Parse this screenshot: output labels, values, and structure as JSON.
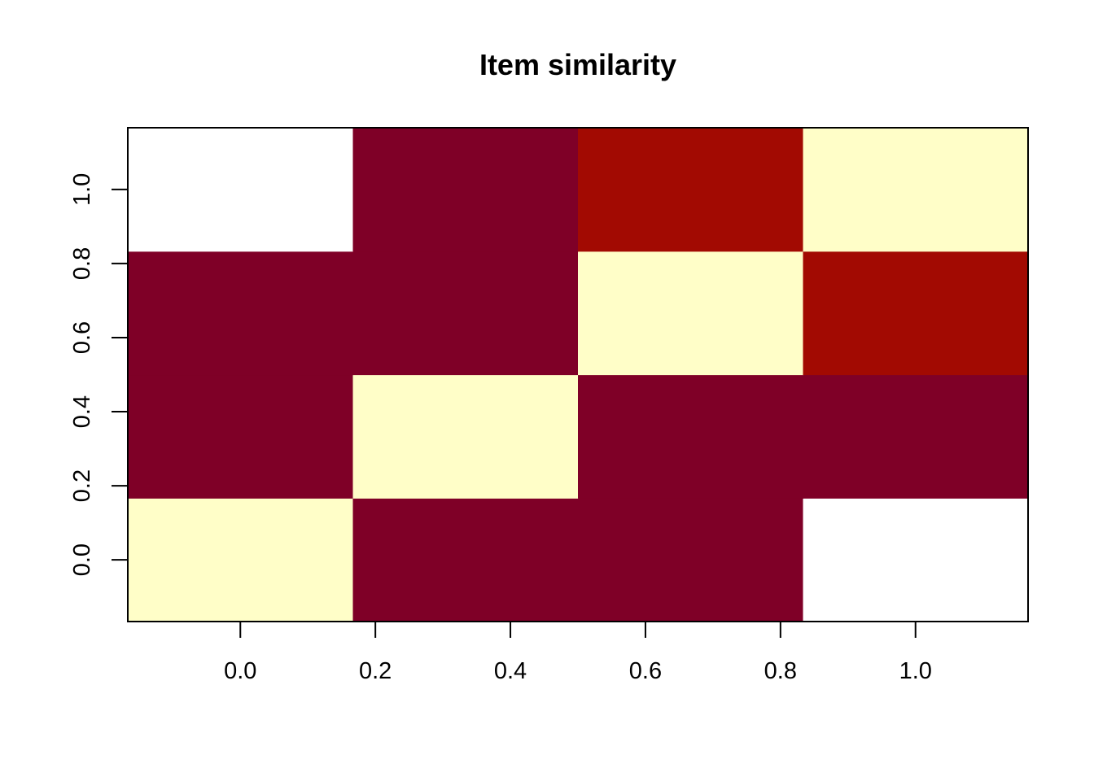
{
  "chart_data": {
    "type": "heatmap",
    "title": "Item similarity",
    "xlabel": "",
    "ylabel": "",
    "rows": 4,
    "cols": 4,
    "x_ticks": [
      "0.0",
      "0.2",
      "0.4",
      "0.6",
      "0.8",
      "1.0"
    ],
    "y_ticks": [
      "0.0",
      "0.2",
      "0.4",
      "0.6",
      "0.8",
      "1.0"
    ],
    "x_tick_values": [
      0.0,
      0.2,
      0.4,
      0.6,
      0.8,
      1.0
    ],
    "y_tick_values": [
      0.0,
      0.2,
      0.4,
      0.6,
      0.8,
      1.0
    ],
    "xlim": [
      -0.1667,
      1.1667
    ],
    "ylim": [
      -0.1667,
      1.1667
    ],
    "grid": false,
    "legend": "none",
    "color_scale": [
      "#7F0027",
      "#A20A02",
      "#FFFEC8"
    ],
    "missing_color": "#FFFFFF",
    "matrix_rows_bottom_to_top": [
      [
        1.0,
        0.0,
        0.0,
        null
      ],
      [
        0.0,
        1.0,
        0.0,
        0.0
      ],
      [
        0.0,
        0.0,
        1.0,
        0.1
      ],
      [
        null,
        0.0,
        0.1,
        1.0
      ]
    ]
  }
}
